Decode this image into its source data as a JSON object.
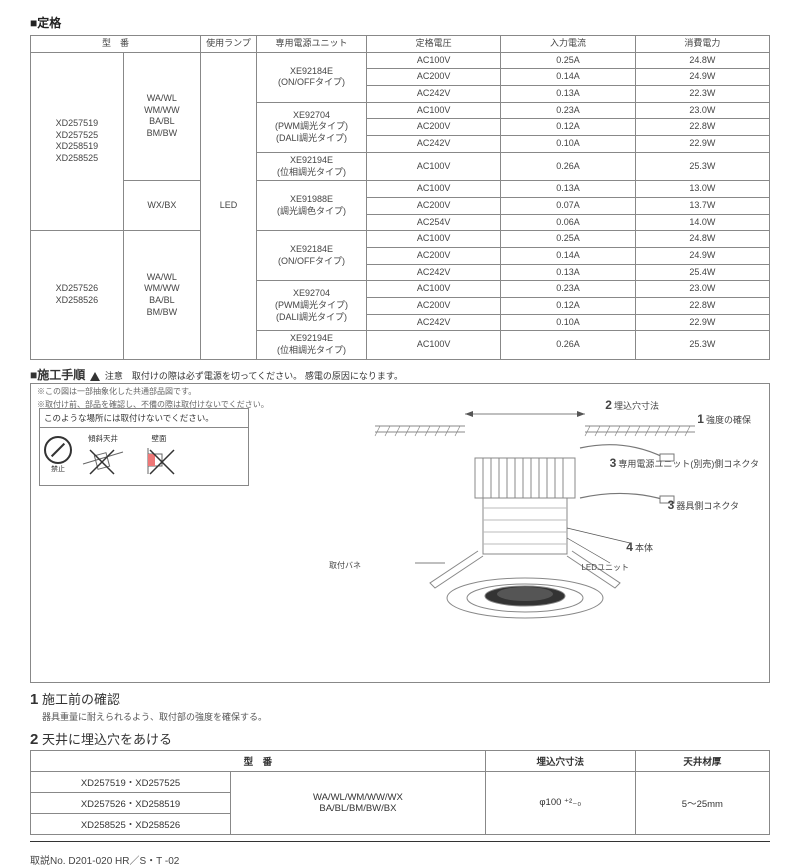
{
  "titles": {
    "ratings": "■定格",
    "procedure": "■施工手順",
    "warn_text": "注意　取付けの際は必ず電源を切ってください。",
    "warn_tail": "感電の原因になります。",
    "note1": "※この図は一部抽象化した共通部品図です。",
    "note2": "※取付け前、部品を確認し、不備の際は取付けないでください。",
    "warn_box_title": "このような場所には取付けないでください。",
    "warn_slope": "傾斜天井",
    "warn_wall": "壁面",
    "prohibit": "禁止",
    "step1": "施工前の確認",
    "step1_desc": "器具重量に耐えられるよう、取付部の強度を確保する。",
    "step2": "天井に埋込穴をあける",
    "footer": "取説No. D201-020 HR／S・T -02"
  },
  "spec_headers": [
    "型　番",
    "",
    "使用ランプ",
    "専用電源ユニット",
    "定格電圧",
    "入力電流",
    "消費電力"
  ],
  "spec_rows": [
    {
      "m": [
        "XD257519",
        "XD257525",
        "XD258519",
        "XD258525"
      ],
      "g": "WA/WL\nWM/WW\nBA/BL\nBM/BW",
      "lamp": "LED",
      "units": [
        {
          "u": "XE92184E\n(ON/OFFタイプ)",
          "v": [
            [
              "AC100V",
              "0.25A",
              "24.8W"
            ],
            [
              "AC200V",
              "0.14A",
              "24.9W"
            ],
            [
              "AC242V",
              "0.13A",
              "22.3W"
            ]
          ]
        },
        {
          "u": "XE92704\n(PWM調光タイプ)\n(DALI調光タイプ)",
          "v": [
            [
              "AC100V",
              "0.23A",
              "23.0W"
            ],
            [
              "AC200V",
              "0.12A",
              "22.8W"
            ],
            [
              "AC242V",
              "0.10A",
              "22.9W"
            ]
          ]
        },
        {
          "u": "XE92194E\n(位相調光タイプ)",
          "v": [
            [
              "AC100V",
              "0.26A",
              "25.3W"
            ]
          ]
        }
      ]
    },
    {
      "m": [],
      "g": "WX/BX",
      "lamp": "",
      "units": [
        {
          "u": "XE91988E\n(調光調色タイプ)",
          "v": [
            [
              "AC100V",
              "0.13A",
              "13.0W"
            ],
            [
              "AC200V",
              "0.07A",
              "13.7W"
            ],
            [
              "AC254V",
              "0.06A",
              "14.0W"
            ]
          ]
        }
      ]
    },
    {
      "m": [
        "XD257526",
        "XD258526"
      ],
      "g": "WA/WL\nWM/WW\nBA/BL\nBM/BW",
      "lamp": "",
      "units": [
        {
          "u": "XE92184E\n(ON/OFFタイプ)",
          "v": [
            [
              "AC100V",
              "0.25A",
              "24.8W"
            ],
            [
              "AC200V",
              "0.14A",
              "24.9W"
            ],
            [
              "AC242V",
              "0.13A",
              "25.4W"
            ]
          ]
        },
        {
          "u": "XE92704\n(PWM調光タイプ)\n(DALI調光タイプ)",
          "v": [
            [
              "AC100V",
              "0.23A",
              "23.0W"
            ],
            [
              "AC200V",
              "0.12A",
              "22.8W"
            ],
            [
              "AC242V",
              "0.10A",
              "22.9W"
            ]
          ]
        },
        {
          "u": "XE92194E\n(位相調光タイプ)",
          "v": [
            [
              "AC100V",
              "0.26A",
              "25.3W"
            ]
          ]
        }
      ]
    }
  ],
  "callouts": {
    "c1": "強度の確保",
    "c2": "埋込穴寸法",
    "c3a": "専用電源ユニット(別売)側コネクタ",
    "c3b": "器具側コネクタ",
    "c4": "本体",
    "led": "LEDユニット",
    "bane": "取付バネ"
  },
  "hole_table": {
    "headers": [
      "型　番",
      "",
      "埋込穴寸法",
      "天井材厚"
    ],
    "models": [
      "XD257519・XD257525",
      "XD257526・XD258519",
      "XD258525・XD258526"
    ],
    "variant": "WA/WL/WM/WW/WX\nBA/BL/BM/BW/BX",
    "hole": "φ100 ⁺²₋₀",
    "thick": "5～25mm"
  }
}
